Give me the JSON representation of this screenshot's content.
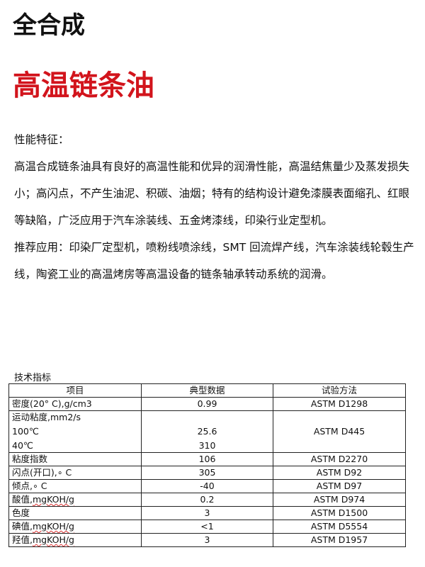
{
  "title1": "全合成",
  "title2": "高温链条油",
  "features_label": "性能特征：",
  "features_text": "高温合成链条油具有良好的高温性能和优异的润滑性能，高温结焦量少及蒸发损失小；高闪点，不产生油泥、积碳、油烟；特有的结构设计避免漆膜表面缩孔、红眼等缺陷，广泛应用于汽车涂装线、五金烤漆线，印染行业定型机。",
  "application_text": "推荐应用：印染厂定型机，喷粉线喷涂线，SMT 回流焊产线，汽车涂装线轮毂生产线，陶瓷工业的高温烤房等高温设备的链条轴承转动系统的润滑。",
  "table_caption": "技术指标",
  "headers": [
    "项目",
    "典型数据",
    "试验方法"
  ],
  "rows": [
    {
      "item": "密度(20° C),g/cm3",
      "value": "0.99",
      "method": "ASTM D1298"
    },
    {
      "item": "运动粘度,mm2/s",
      "item2": "100℃",
      "item3": "40℃",
      "value2": "25.6",
      "value3": "310",
      "method": "ASTM D445"
    },
    {
      "item": "粘度指数",
      "value": "106",
      "method": "ASTM D2270"
    },
    {
      "item": "闪点(开口),∘ C",
      "value": "305",
      "method": "ASTM D92"
    },
    {
      "item": "倾点,∘ C",
      "value": "-40",
      "method": "ASTM D97"
    },
    {
      "item": "酸值,",
      "unit": "mgKOH/g",
      "value": "0.2",
      "method": "ASTM D974"
    },
    {
      "item": "色度",
      "value": "3",
      "method": "ASTM D1500"
    },
    {
      "item": "碘值,",
      "unit": "mgKOH/g",
      "value": "<1",
      "method": "ASTM D5554"
    },
    {
      "item": "羟值,",
      "unit": "mgKOH/g",
      "value": "3",
      "method": "ASTM D1957"
    }
  ]
}
